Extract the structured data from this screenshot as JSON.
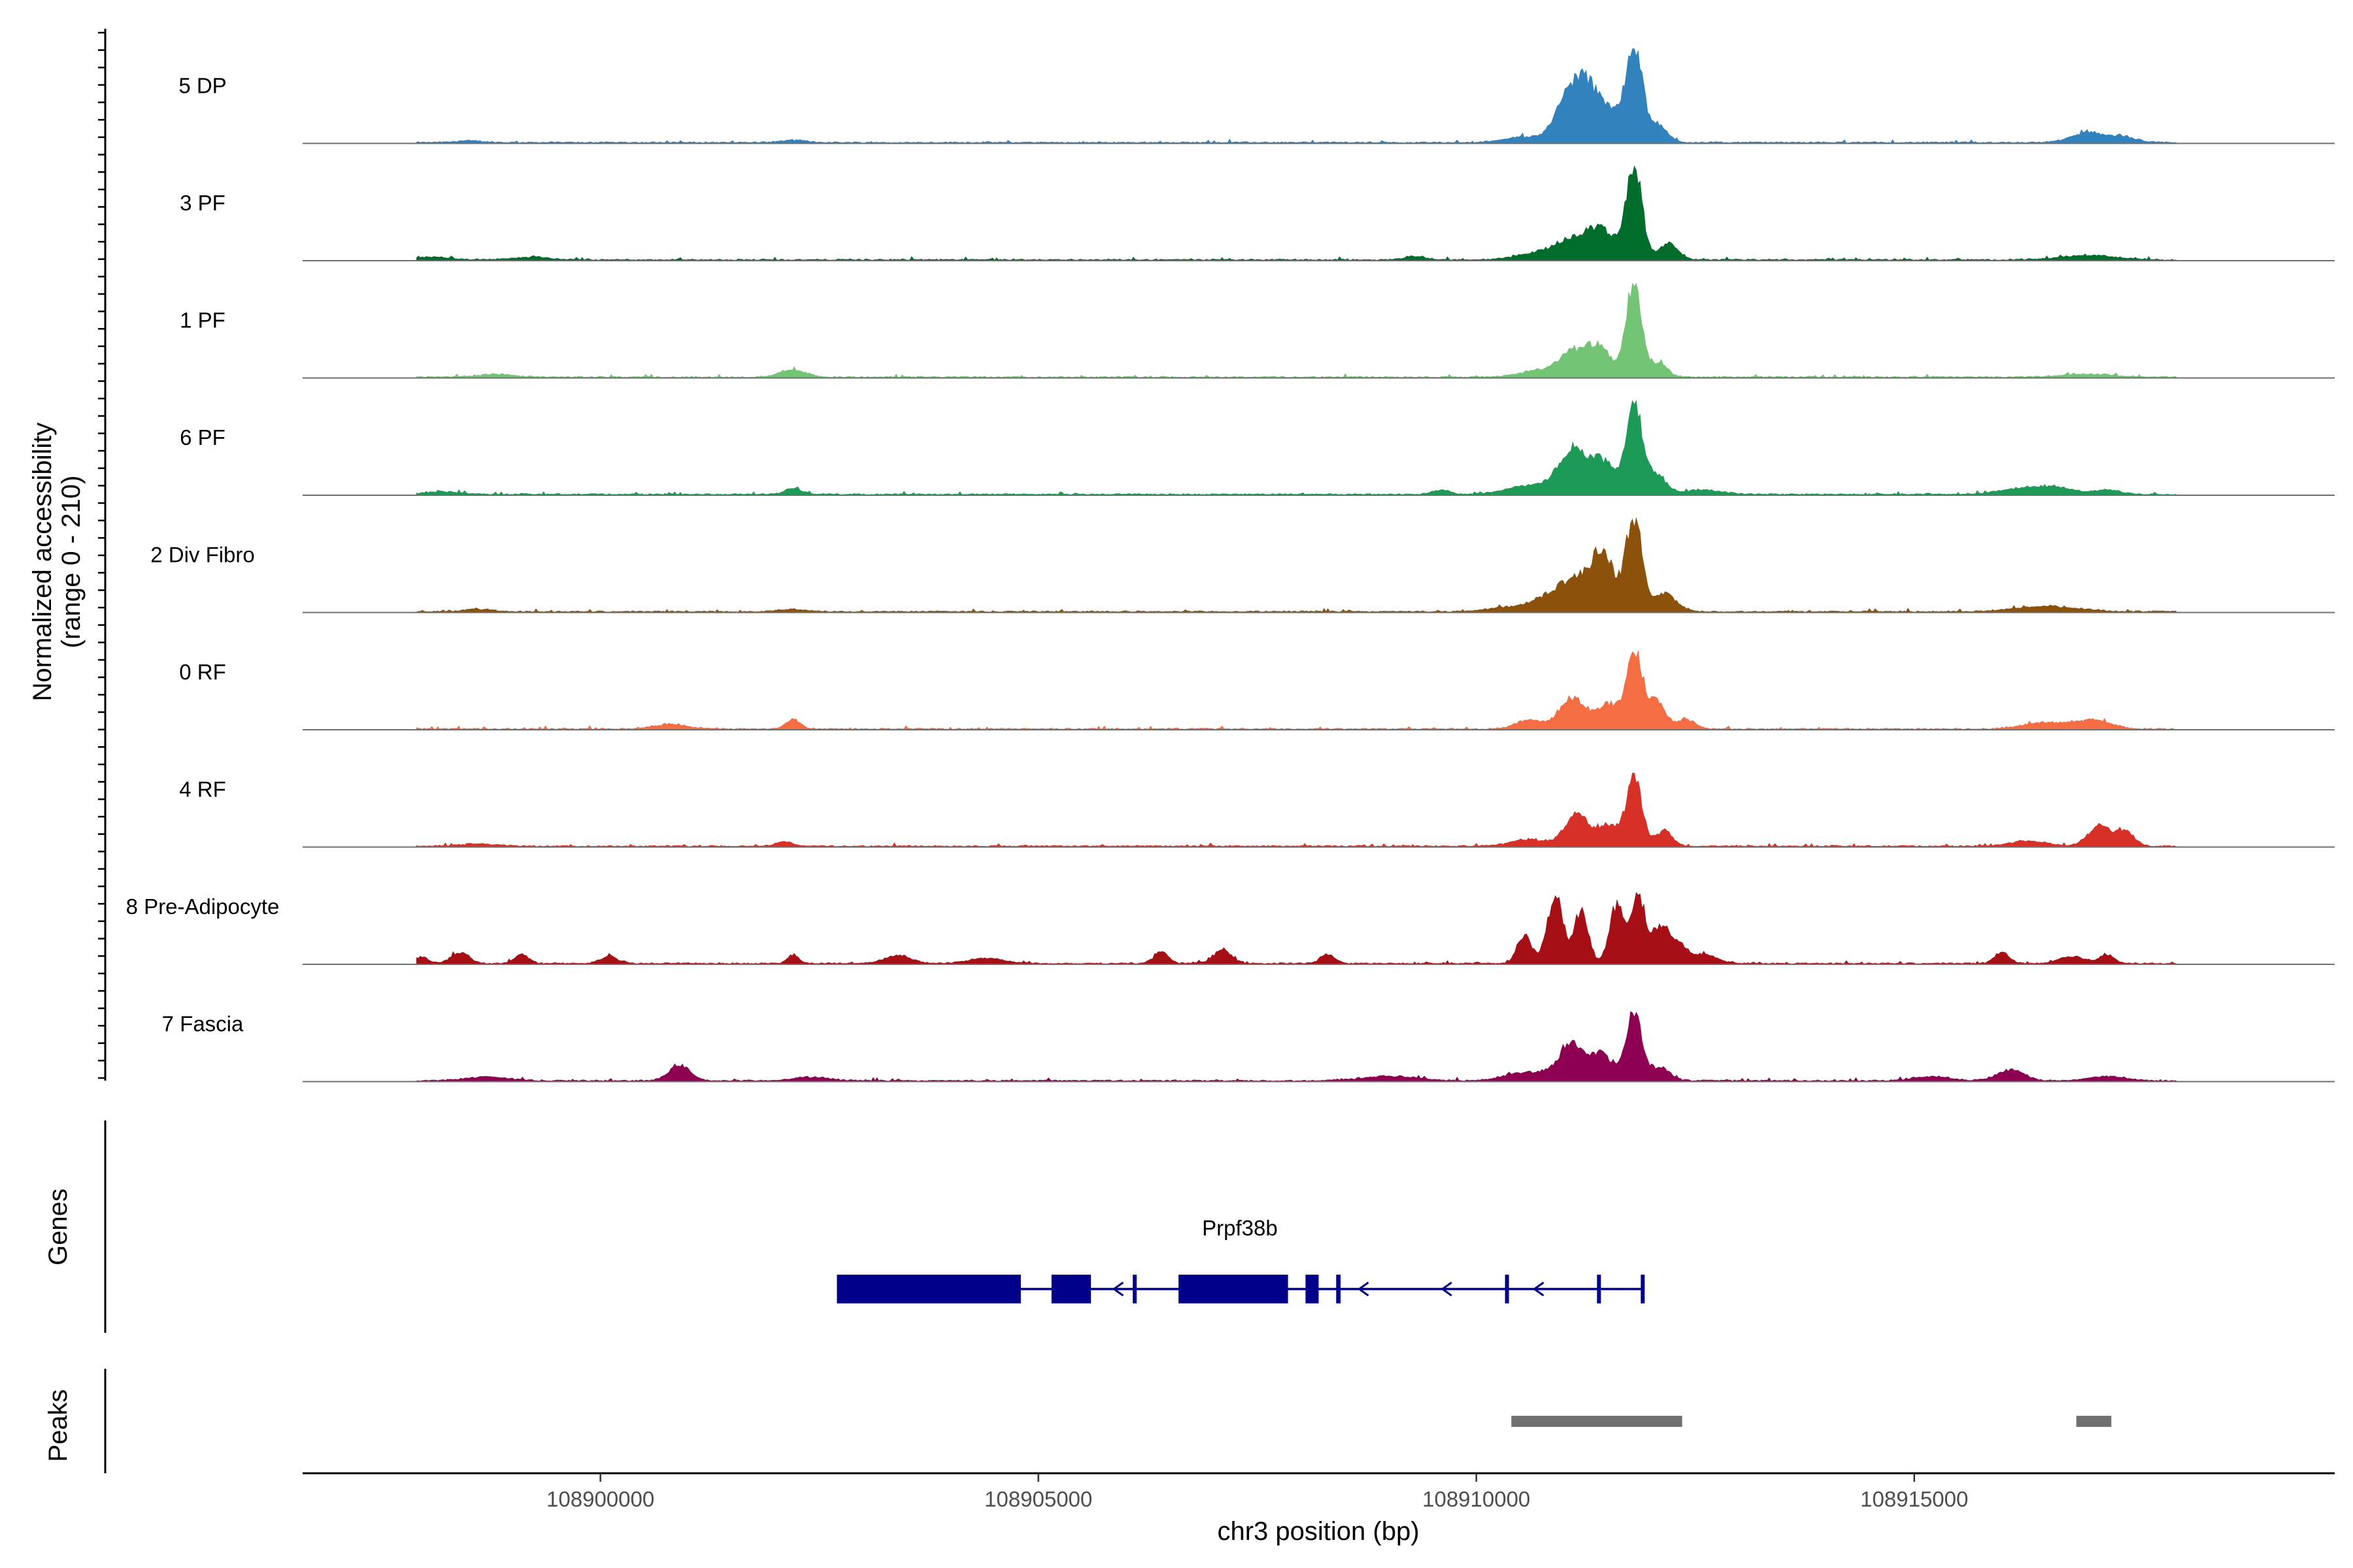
{
  "chart_data": {
    "type": "area",
    "title": "",
    "ylabel": "Normalized accessibility",
    "ylabel_range": "(range 0 - 210)",
    "ylim": [
      0,
      210
    ],
    "xlabel": "chr3 position (bp)",
    "xlim": [
      108896600,
      108919800
    ],
    "x_ticks": [
      108900000,
      108905000,
      108910000,
      108915000
    ],
    "x_tick_labels": [
      "108900000",
      "108905000",
      "108910000",
      "108915000"
    ],
    "track_titles": {
      "genes": "Genes",
      "peaks": "Peaks"
    },
    "series": [
      {
        "name": "5 DP",
        "color": "#3182bd",
        "peaks": [
          [
            108911100,
            110,
            180
          ],
          [
            108911300,
            70,
            150
          ],
          [
            108911550,
            55,
            120
          ],
          [
            108911800,
            210,
            90
          ],
          [
            108912050,
            40,
            120
          ],
          [
            108910500,
            12,
            200
          ],
          [
            108917000,
            22,
            200
          ],
          [
            108917400,
            10,
            150
          ],
          [
            108898500,
            4,
            150
          ],
          [
            108902200,
            5,
            150
          ]
        ]
      },
      {
        "name": "3 PF",
        "color": "#006d2c",
        "peaks": [
          [
            108911150,
            50,
            250
          ],
          [
            108911450,
            45,
            150
          ],
          [
            108911800,
            210,
            90
          ],
          [
            108912200,
            35,
            110
          ],
          [
            108910600,
            10,
            200
          ],
          [
            108898100,
            6,
            200
          ],
          [
            108899200,
            6,
            200
          ],
          [
            108909300,
            8,
            120
          ],
          [
            108917000,
            10,
            300
          ]
        ]
      },
      {
        "name": "1 PF",
        "color": "#74c476",
        "peaks": [
          [
            108911100,
            55,
            150
          ],
          [
            108911400,
            65,
            130
          ],
          [
            108911800,
            210,
            90
          ],
          [
            108912100,
            30,
            90
          ],
          [
            108910700,
            15,
            200
          ],
          [
            108902200,
            15,
            150
          ],
          [
            108898800,
            6,
            200
          ],
          [
            108917000,
            6,
            300
          ]
        ]
      },
      {
        "name": "6 PF",
        "color": "#1d9a55",
        "peaks": [
          [
            108911100,
            100,
            160
          ],
          [
            108911450,
            70,
            130
          ],
          [
            108911800,
            200,
            90
          ],
          [
            108912050,
            45,
            110
          ],
          [
            108910600,
            20,
            250
          ],
          [
            108912600,
            10,
            200
          ],
          [
            108916200,
            12,
            250
          ],
          [
            108916600,
            15,
            200
          ],
          [
            108917200,
            10,
            150
          ],
          [
            108902200,
            12,
            100
          ],
          [
            108909600,
            10,
            100
          ],
          [
            108898200,
            6,
            200
          ]
        ]
      },
      {
        "name": "2 Div Fibro",
        "color": "#8c510a",
        "peaks": [
          [
            108910800,
            30,
            200
          ],
          [
            108911150,
            65,
            180
          ],
          [
            108911450,
            120,
            130
          ],
          [
            108911800,
            210,
            90
          ],
          [
            108912150,
            40,
            130
          ],
          [
            108910300,
            8,
            200
          ],
          [
            108916500,
            12,
            350
          ],
          [
            108898600,
            6,
            150
          ],
          [
            108902200,
            5,
            150
          ]
        ]
      },
      {
        "name": "0 RF",
        "color": "#f46d43",
        "peaks": [
          [
            108910600,
            20,
            150
          ],
          [
            108911100,
            70,
            150
          ],
          [
            108911500,
            55,
            120
          ],
          [
            108911800,
            170,
            90
          ],
          [
            108912050,
            60,
            110
          ],
          [
            108912400,
            20,
            100
          ],
          [
            108902200,
            22,
            80
          ],
          [
            108900800,
            10,
            200
          ],
          [
            108916500,
            15,
            250
          ],
          [
            108917050,
            18,
            200
          ]
        ]
      },
      {
        "name": "4 RF",
        "color": "#d73027",
        "peaks": [
          [
            108911150,
            70,
            140
          ],
          [
            108911500,
            45,
            110
          ],
          [
            108911800,
            150,
            90
          ],
          [
            108912150,
            35,
            90
          ],
          [
            108910600,
            15,
            200
          ],
          [
            108917100,
            45,
            120
          ],
          [
            108917400,
            35,
            100
          ],
          [
            108916300,
            12,
            200
          ],
          [
            108898600,
            5,
            200
          ],
          [
            108902100,
            10,
            100
          ]
        ]
      },
      {
        "name": "8 Pre-Adipocyte",
        "color": "#a50f15",
        "peaks": [
          [
            108910550,
            65,
            80
          ],
          [
            108910900,
            150,
            90
          ],
          [
            108911200,
            120,
            80
          ],
          [
            108911600,
            130,
            80
          ],
          [
            108911850,
            150,
            80
          ],
          [
            108912100,
            80,
            90
          ],
          [
            108912300,
            40,
            100
          ],
          [
            108912600,
            20,
            150
          ],
          [
            108897950,
            15,
            80
          ],
          [
            108898400,
            25,
            100
          ],
          [
            108899100,
            20,
            80
          ],
          [
            108900100,
            15,
            100
          ],
          [
            108902200,
            20,
            60
          ],
          [
            108903400,
            18,
            150
          ],
          [
            108904400,
            12,
            200
          ],
          [
            108906400,
            25,
            80
          ],
          [
            108907100,
            30,
            100
          ],
          [
            108908300,
            20,
            80
          ],
          [
            108916000,
            25,
            80
          ],
          [
            108916800,
            15,
            150
          ],
          [
            108917200,
            20,
            80
          ]
        ]
      },
      {
        "name": "7 Fascia",
        "color": "#8e0152",
        "peaks": [
          [
            108911100,
            80,
            150
          ],
          [
            108911450,
            55,
            120
          ],
          [
            108911800,
            150,
            90
          ],
          [
            108912100,
            30,
            110
          ],
          [
            108910600,
            20,
            250
          ],
          [
            108900900,
            35,
            120
          ],
          [
            108898700,
            8,
            250
          ],
          [
            108902400,
            8,
            200
          ],
          [
            108909000,
            10,
            300
          ],
          [
            108916100,
            25,
            150
          ],
          [
            108915200,
            10,
            200
          ],
          [
            108917200,
            10,
            200
          ]
        ]
      }
    ],
    "genes": [
      {
        "name": "Prpf38b",
        "strand": "-",
        "exons": [
          [
            108902700,
            108904800
          ],
          [
            108905150,
            108905600
          ],
          [
            108906600,
            108907850
          ],
          [
            108908050,
            108908200
          ],
          [
            108908400,
            108908450
          ]
        ],
        "markers": [
          108906100,
          108910350,
          108911400,
          108911900
        ],
        "arrows": [
          108905900,
          108908700,
          108909650,
          108910700
        ]
      }
    ],
    "peak_regions": [
      [
        108910400,
        108912350
      ],
      [
        108916850,
        108917250
      ]
    ]
  }
}
